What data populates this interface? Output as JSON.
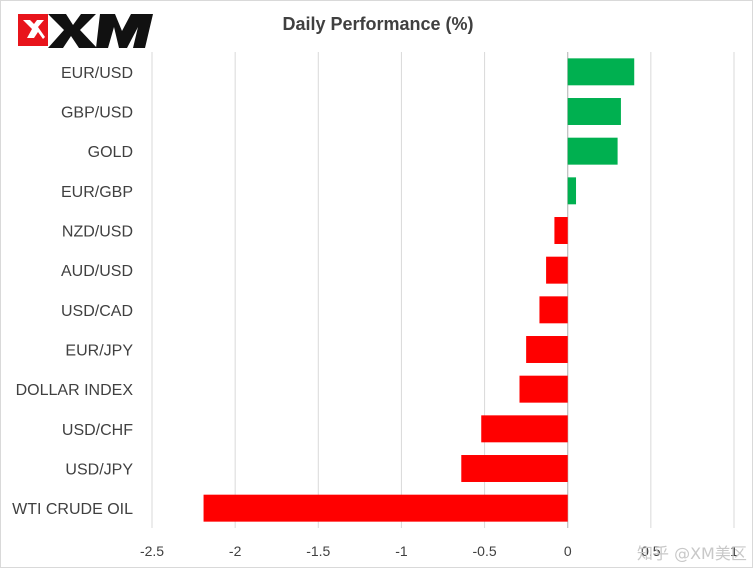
{
  "logo": {
    "text": "XM",
    "colors": {
      "red": "#e8141b",
      "black": "#111111"
    }
  },
  "watermark": "知乎 @XM美区",
  "chart_data": {
    "type": "bar",
    "orientation": "horizontal",
    "title": "Daily Performance (%)",
    "categories": [
      "EUR/USD",
      "GBP/USD",
      "GOLD",
      "EUR/GBP",
      "NZD/USD",
      "AUD/USD",
      "USD/CAD",
      "EUR/JPY",
      "DOLLAR INDEX",
      "USD/CHF",
      "USD/JPY",
      "WTI CRUDE OIL"
    ],
    "values": [
      0.4,
      0.32,
      0.3,
      0.05,
      -0.08,
      -0.13,
      -0.17,
      -0.25,
      -0.29,
      -0.52,
      -0.64,
      -2.19
    ],
    "xlim": [
      -2.5,
      1
    ],
    "xticks": [
      "-2.5",
      "-2",
      "-1.5",
      "-1",
      "-0.5",
      "0",
      "0.5",
      "1"
    ],
    "xlabel": "",
    "ylabel": "",
    "grid": true,
    "legend": "none",
    "colors": {
      "positive": "#00b050",
      "negative": "#ff0000",
      "grid": "#d9d9d9",
      "axis": "#bfbfbf"
    }
  }
}
